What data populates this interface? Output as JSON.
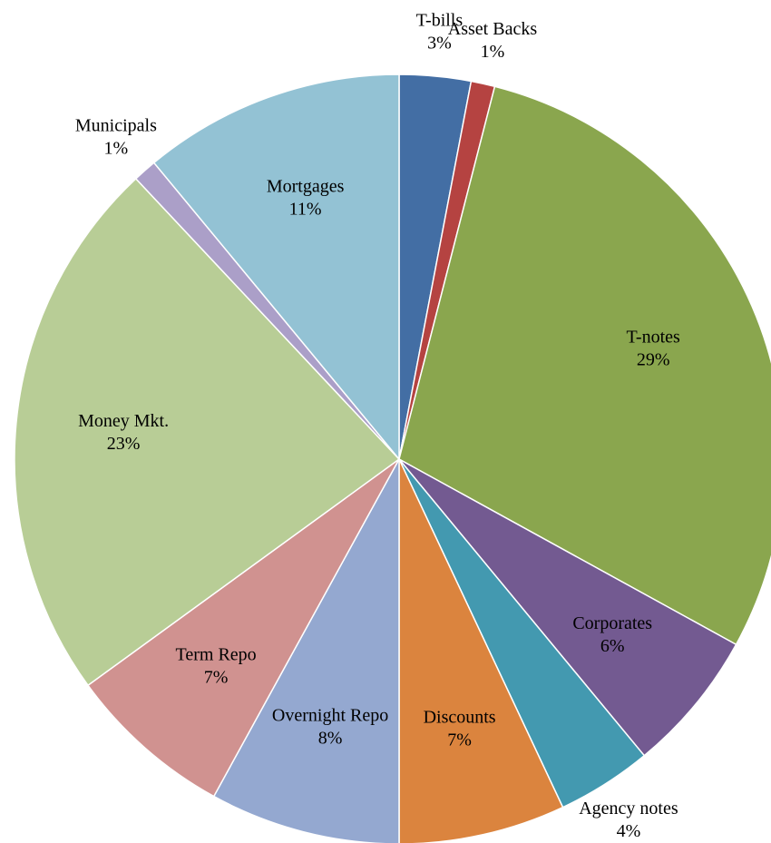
{
  "chart_data": {
    "type": "pie",
    "categories": [
      "T-bills",
      "Asset Backs",
      "T-notes",
      "Corporates",
      "Agency notes",
      "Discounts",
      "Overnight Repo",
      "Term Repo",
      "Money Mkt.",
      "Municipals",
      "Mortgages"
    ],
    "values": [
      3,
      1,
      29,
      6,
      4,
      7,
      8,
      7,
      23,
      1,
      11
    ],
    "value_labels": [
      "3%",
      "1%",
      "29%",
      "6%",
      "4%",
      "7%",
      "8%",
      "7%",
      "23%",
      "1%",
      "11%"
    ],
    "colors": [
      "#436ea4",
      "#b54341",
      "#8aa64e",
      "#735a91",
      "#4399b0",
      "#db843e",
      "#94a8d0",
      "#d09290",
      "#b8cd96",
      "#ab9fc8",
      "#93c2d4"
    ]
  }
}
